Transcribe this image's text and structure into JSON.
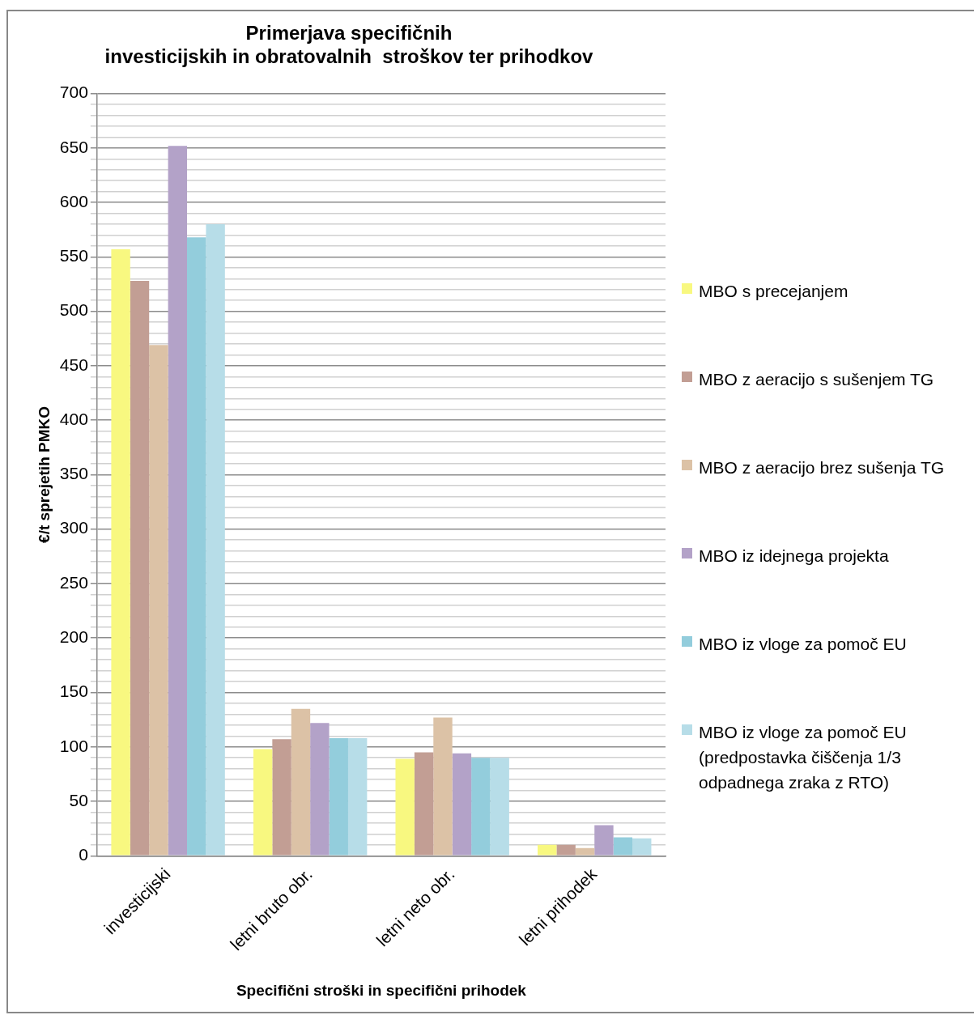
{
  "chart_data": {
    "type": "bar",
    "title": "Primerjava specifičnih\ninvesticijskih in obratovalnih  stroškov ter prihodkov",
    "xlabel": "Specifični stroški in specifični prihodek",
    "ylabel": "€/t sprejetih PMKO",
    "categories": [
      "investicijski",
      "letni bruto obr.",
      "letni neto obr.",
      "letni prihodek"
    ],
    "series": [
      {
        "name": "MBO s precejanjem",
        "color": "#f8f880",
        "values": [
          557,
          98,
          89,
          10
        ]
      },
      {
        "name": "MBO z aeracijo s sušenjem TG",
        "color": "#c29e94",
        "values": [
          528,
          107,
          95,
          10
        ]
      },
      {
        "name": "MBO z aeracijo brez sušenja TG",
        "color": "#dcc2a6",
        "values": [
          469,
          135,
          127,
          7
        ]
      },
      {
        "name": "MBO iz idejnega projekta",
        "color": "#b3a2c8",
        "values": [
          652,
          122,
          94,
          28
        ]
      },
      {
        "name": "MBO iz vloge za pomoč EU",
        "color": "#93cddc",
        "values": [
          568,
          108,
          90,
          17
        ]
      },
      {
        "name": "MBO iz vloge za pomoč EU (predpostavka čiščenja 1/3 odpadnega zraka z RTO)",
        "color": "#b7dde8",
        "values": [
          580,
          108,
          90,
          16
        ]
      }
    ],
    "ylim": [
      0,
      700
    ],
    "yticks": [
      0,
      {
        "value": 10,
        "label": null
      },
      {
        "value": 20,
        "label": null
      },
      {
        "value": 30,
        "label": null
      },
      {
        "value": 40,
        "label": null
      },
      50,
      {
        "value": 60,
        "label": null
      },
      {
        "value": 70,
        "label": null
      },
      {
        "value": 80,
        "label": null
      },
      {
        "value": 90,
        "label": null
      },
      100,
      {
        "value": 110,
        "label": null
      },
      {
        "value": 120,
        "label": null
      },
      {
        "value": 130,
        "label": null
      },
      {
        "value": 140,
        "label": null
      },
      150,
      {
        "value": 160,
        "label": null
      },
      {
        "value": 170,
        "label": null
      },
      {
        "value": 180,
        "label": null
      },
      {
        "value": 190,
        "label": null
      },
      200,
      {
        "value": 210,
        "label": null
      },
      {
        "value": 220,
        "label": null
      },
      {
        "value": 230,
        "label": null
      },
      {
        "value": 240,
        "label": null
      },
      250,
      {
        "value": 260,
        "label": null
      },
      {
        "value": 270,
        "label": null
      },
      {
        "value": 280,
        "label": null
      },
      {
        "value": 290,
        "label": null
      },
      300,
      {
        "value": 310,
        "label": null
      },
      {
        "value": 320,
        "label": null
      },
      {
        "value": 330,
        "label": null
      },
      {
        "value": 340,
        "label": null
      },
      350,
      {
        "value": 360,
        "label": null
      },
      {
        "value": 370,
        "label": null
      },
      {
        "value": 380,
        "label": null
      },
      {
        "value": 390,
        "label": null
      },
      400,
      {
        "value": 410,
        "label": null
      },
      {
        "value": 420,
        "label": null
      },
      {
        "value": 430,
        "label": null
      },
      {
        "value": 440,
        "label": null
      },
      450,
      {
        "value": 460,
        "label": null
      },
      {
        "value": 470,
        "label": null
      },
      {
        "value": 480,
        "label": null
      },
      {
        "value": 490,
        "label": null
      },
      500,
      {
        "value": 510,
        "label": null
      },
      {
        "value": 520,
        "label": null
      },
      {
        "value": 530,
        "label": null
      },
      {
        "value": 540,
        "label": null
      },
      550,
      {
        "value": 560,
        "label": null
      },
      {
        "value": 570,
        "label": null
      },
      {
        "value": 580,
        "label": null
      },
      {
        "value": 590,
        "label": null
      },
      600,
      {
        "value": 610,
        "label": null
      },
      {
        "value": 620,
        "label": null
      },
      {
        "value": 630,
        "label": null
      },
      {
        "value": 640,
        "label": null
      },
      650,
      {
        "value": 660,
        "label": null
      },
      {
        "value": 670,
        "label": null
      },
      {
        "value": 680,
        "label": null
      },
      {
        "value": 690,
        "label": null
      },
      700
    ],
    "grid": "y",
    "legend": "right"
  }
}
